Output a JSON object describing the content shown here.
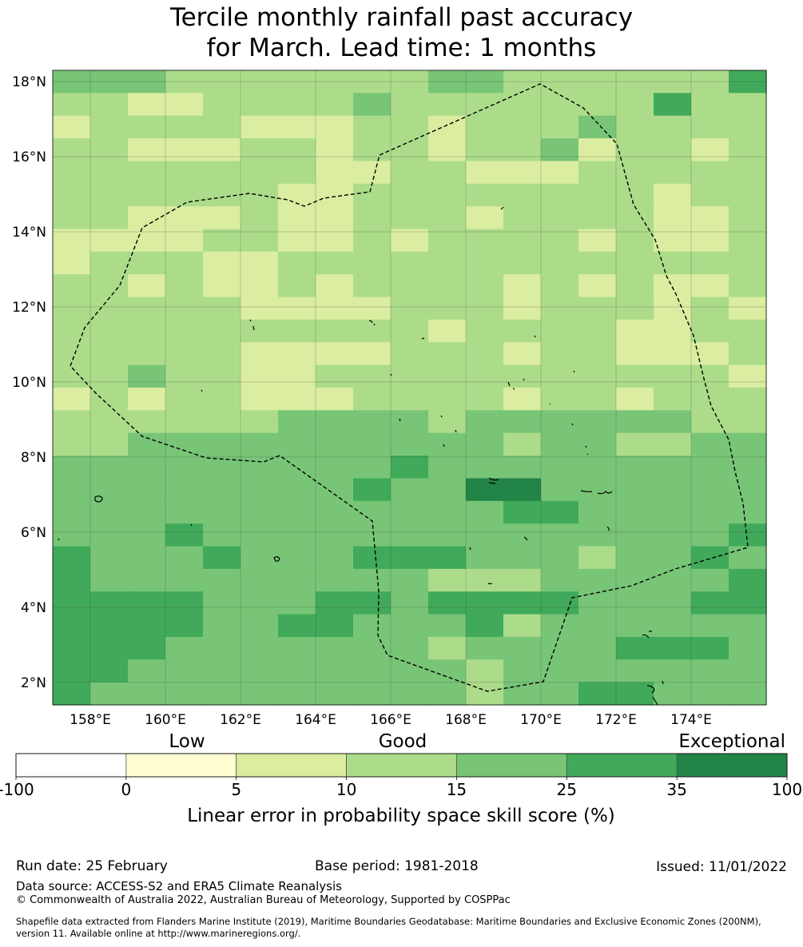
{
  "title": {
    "line1": "Tercile monthly rainfall past accuracy",
    "line2": "for March. Lead time: 1 months"
  },
  "map": {
    "lat_ticks": [
      "18°N",
      "16°N",
      "14°N",
      "12°N",
      "10°N",
      "8°N",
      "6°N",
      "4°N",
      "2°N"
    ],
    "lon_ticks": [
      "158°E",
      "160°E",
      "162°E",
      "164°E",
      "166°E",
      "168°E",
      "170°E",
      "172°E",
      "174°E"
    ],
    "lat_range": [
      1.4,
      18.3
    ],
    "lon_range": [
      157,
      176
    ],
    "grid_rows": [
      "4443333333443333335",
      "3322333343333333533",
      "2333322233233343333",
      "3322233233233423323",
      "3333333223322233333",
      "3333332233333333233",
      "3322232233323333223",
      "2222332232333323223",
      "2333223333333333333",
      "3323223233332323223",
      "3333322223332333232",
      "3333333333233332233",
      "3333322223332332223",
      "3343322333333333332",
      "2323322233332332333",
      "3333334444344444433",
      "3344444444443443344",
      "4444444445444444444",
      "4444444454466444444",
      "4444444444445544444",
      "4445444444444444445",
      "5444544455544434454",
      "5444444444333444445",
      "5555444554555544455",
      "5555445544453444444",
      "5554444444344445554",
      "5544444444434444444",
      "5444444444434455444"
    ],
    "color_scale": [
      "#ffffff",
      "#fefed2",
      "#daeda0",
      "#acdc8a",
      "#78c577",
      "#40aa5a",
      "#228446"
    ]
  },
  "colorbar": {
    "categories": [
      "Low",
      "Good",
      "Exceptional"
    ],
    "bounds": [
      "-100",
      "0",
      "5",
      "10",
      "15",
      "25",
      "35",
      "100"
    ],
    "colors": [
      "#ffffff",
      "#fefed2",
      "#daeda0",
      "#acdc8a",
      "#78c577",
      "#40aa5a",
      "#228446"
    ],
    "label": "Linear error in probability space skill score (%)"
  },
  "footer": {
    "run_date": "Run date: 25 February",
    "base_period": "Base period: 1981-2018",
    "issued": "Issued: 11/01/2022",
    "data_source": "Data source: ACCESS-S2 and ERA5 Climate Reanalysis",
    "copyright": "© Commonwealth of Australia 2022, Australian Bureau of Meteorology, Supported by COSPPac",
    "shapefile_line1": "Shapefile data extracted from Flanders Marine Institute (2019), Maritime Boundaries Geodatabase: Maritime Boundaries and Exclusive Economic Zones (200NM),",
    "shapefile_line2": "version 11. Available online at http://www.marineregions.org/."
  }
}
